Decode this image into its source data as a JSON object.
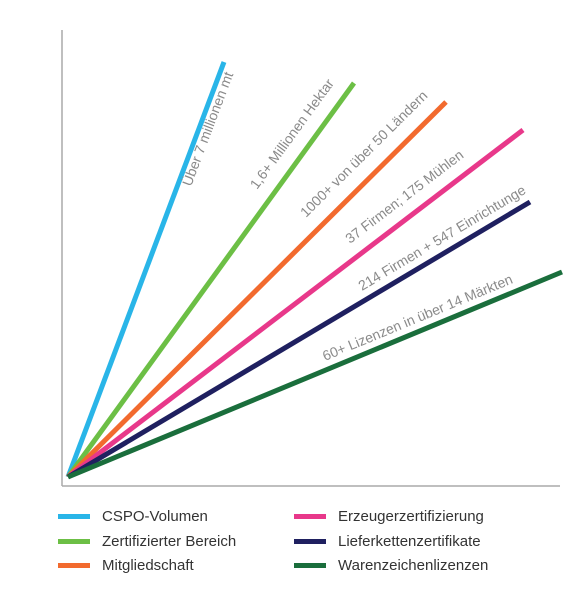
{
  "rays": [
    {
      "key": "cspo",
      "label": "Über 7 millionen mt",
      "legend": "CSPO-Volumen",
      "color": "#29b5e8"
    },
    {
      "key": "area",
      "label": "1,6+ Millionen Hektar",
      "legend": "Zertifizierter Bereich",
      "color": "#6cbf45"
    },
    {
      "key": "membership",
      "label": "1000+ von über 50 Ländern",
      "legend": "Mitgliedschaft",
      "color": "#f26a2e"
    },
    {
      "key": "producer",
      "label": "37 Firmen; 175 Mühlen",
      "legend": "Erzeugerzertifizierung",
      "color": "#e8388a"
    },
    {
      "key": "supply",
      "label": "214 Firmen + 547 Einrichtunge",
      "legend": "Lieferkettenzertifikate",
      "color": "#1f2060"
    },
    {
      "key": "trademark",
      "label": "60+ Lizenzen in über 14 Märkten",
      "legend": "Warenzeichenlizenzen",
      "color": "#1a6e3c"
    }
  ]
}
